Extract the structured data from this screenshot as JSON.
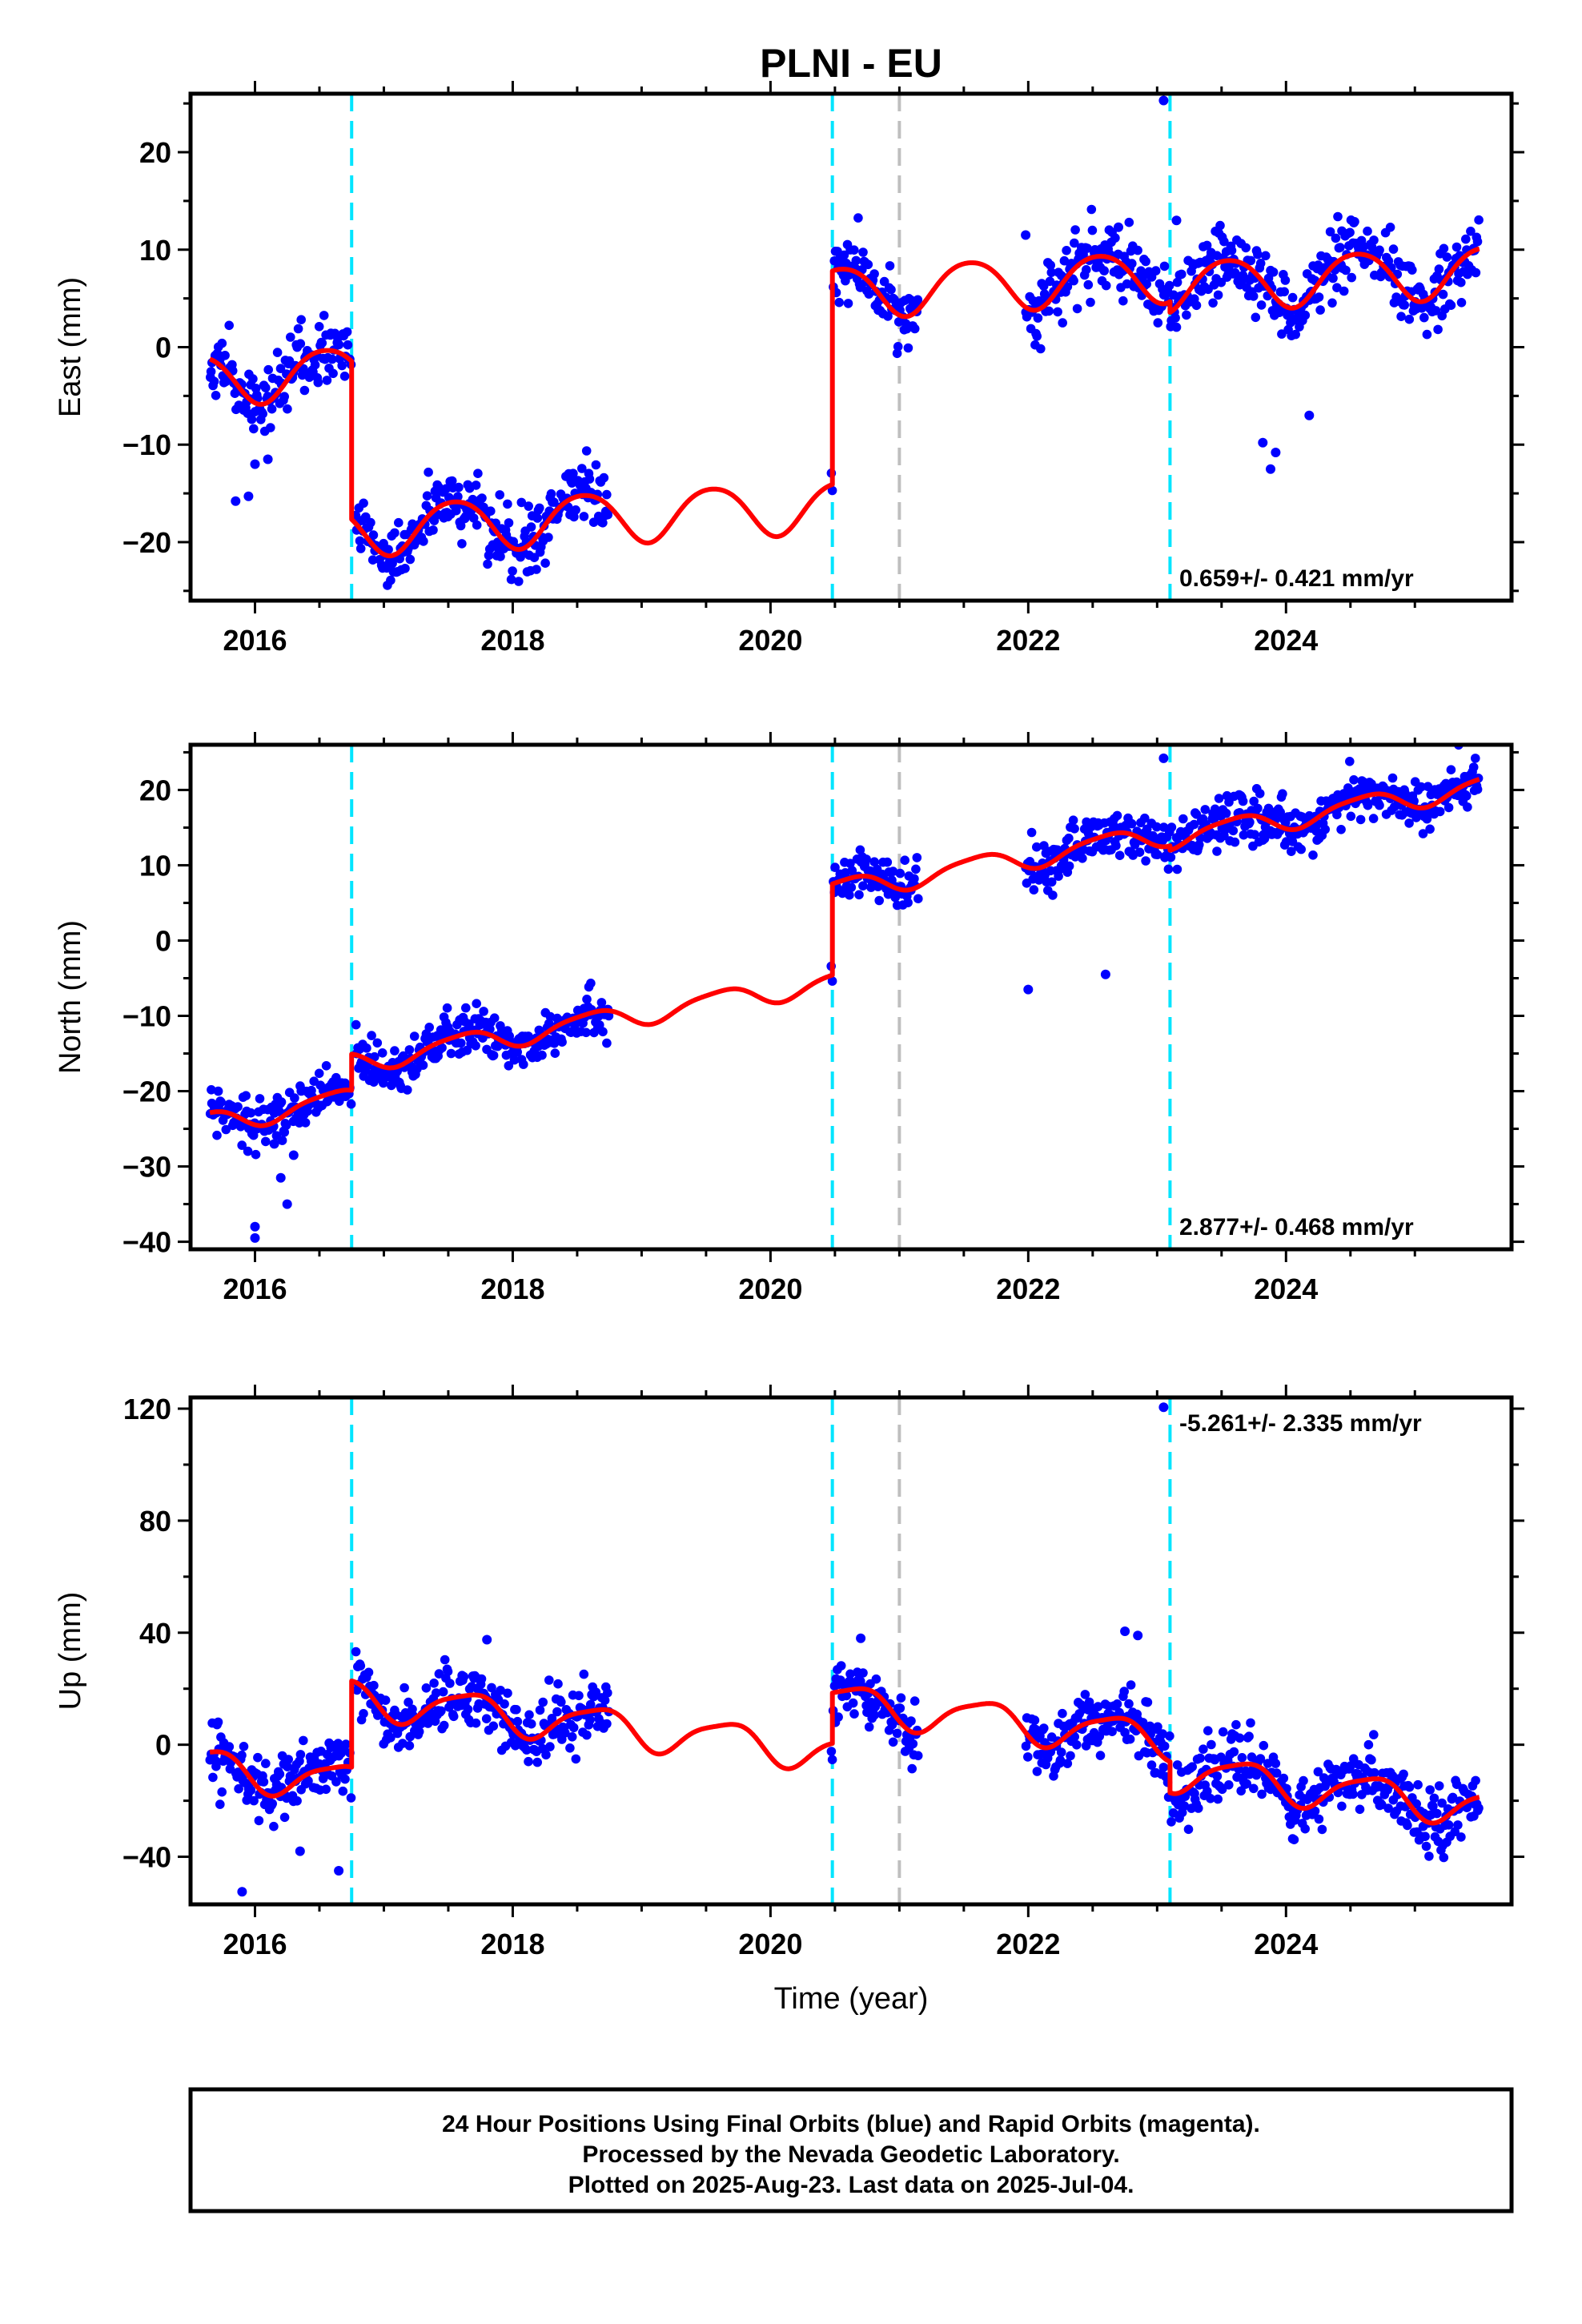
{
  "figure": {
    "title": "PLNI - EU",
    "footer_lines": [
      "24 Hour Positions Using Final Orbits (blue) and Rapid Orbits (magenta).",
      "Processed by the Nevada Geodetic Laboratory.",
      "Plotted on 2025-Aug-23. Last data on 2025-Jul-04."
    ],
    "colors": {
      "final_orbits": "#0000ff",
      "model": "#ff0000",
      "equipment_change": "#00e5ff",
      "other_event": "#bfbfbf"
    }
  },
  "chart_data": [
    {
      "type": "scatter",
      "component": "East",
      "ylabel": "East (mm)",
      "xlabel": "",
      "xlim": [
        2015.5,
        2025.75
      ],
      "ylim": [
        -26,
        26
      ],
      "xticks": [
        2016,
        2018,
        2020,
        2022,
        2024
      ],
      "yticks": [
        -20,
        -10,
        0,
        10,
        20
      ],
      "rate_label": "0.659+/- 0.421 mm/yr",
      "rate_position": "bottom-right",
      "equipment_changes": [
        2016.75,
        2020.48,
        2023.1
      ],
      "other_events": [
        2021.0
      ],
      "model": {
        "segments": [
          {
            "start": 2015.65,
            "end": 2016.75,
            "offset": -3.0,
            "trend": 0.659
          },
          {
            "start": 2016.75,
            "end": 2020.48,
            "offset": -19.2,
            "trend": 0.659
          },
          {
            "start": 2020.48,
            "end": 2023.1,
            "offset": 2.7,
            "trend": 0.659
          },
          {
            "start": 2023.1,
            "end": 2025.5,
            "offset": 1.6,
            "trend": 0.659
          }
        ],
        "annual_amplitude": 2.6,
        "annual_peak": 2016.55,
        "semiannual_amplitude": 0.3,
        "semiannual_peak": 2016.3
      },
      "data_spans": [
        [
          2015.65,
          2016.75
        ],
        [
          2016.78,
          2018.75
        ],
        [
          2020.47,
          2021.15
        ],
        [
          2021.98,
          2025.5
        ]
      ],
      "scatter_sigma": 1.7,
      "outliers": [
        [
          2023.05,
          25.3
        ],
        [
          2023.15,
          13.0
        ],
        [
          2021.98,
          11.5
        ],
        [
          2022.7,
          12.3
        ],
        [
          2015.85,
          -15.8
        ],
        [
          2015.95,
          -15.3
        ],
        [
          2016.0,
          -12.0
        ],
        [
          2016.1,
          -11.5
        ],
        [
          2023.88,
          -12.5
        ],
        [
          2023.92,
          -10.8
        ],
        [
          2023.82,
          -9.8
        ],
        [
          2024.18,
          -7.0
        ]
      ]
    },
    {
      "type": "scatter",
      "component": "North",
      "ylabel": "North (mm)",
      "xlabel": "",
      "xlim": [
        2015.5,
        2025.75
      ],
      "ylim": [
        -41,
        26
      ],
      "xticks": [
        2016,
        2018,
        2020,
        2022,
        2024
      ],
      "yticks": [
        -40,
        -30,
        -20,
        -10,
        0,
        10,
        20
      ],
      "rate_label": "2.877+/- 0.468 mm/yr",
      "rate_position": "bottom-right",
      "equipment_changes": [
        2016.75,
        2020.48,
        2023.1
      ],
      "other_events": [
        2021.0
      ],
      "model": {
        "segments": [
          {
            "start": 2015.65,
            "end": 2016.75,
            "offset": -23.1,
            "trend": 2.877
          },
          {
            "start": 2016.75,
            "end": 2020.48,
            "offset": -18.3,
            "trend": 2.877
          },
          {
            "start": 2020.48,
            "end": 2023.1,
            "offset": -6.2,
            "trend": 2.877
          },
          {
            "start": 2023.1,
            "end": 2025.5,
            "offset": -6.8,
            "trend": 2.877
          }
        ],
        "annual_amplitude": 1.4,
        "annual_peak": 2016.6,
        "semiannual_amplitude": 0.3,
        "semiannual_peak": 2016.3
      },
      "data_spans": [
        [
          2015.65,
          2016.75
        ],
        [
          2016.78,
          2018.75
        ],
        [
          2020.47,
          2021.15
        ],
        [
          2021.98,
          2025.5
        ]
      ],
      "scatter_sigma": 1.6,
      "outliers": [
        [
          2023.05,
          24.2
        ],
        [
          2016.0,
          -38.0
        ],
        [
          2016.0,
          -39.5
        ],
        [
          2016.25,
          -35.0
        ],
        [
          2016.2,
          -31.5
        ],
        [
          2016.3,
          -28.5
        ],
        [
          2016.15,
          -27.0
        ],
        [
          2022.0,
          -6.5
        ],
        [
          2022.6,
          -4.5
        ]
      ]
    },
    {
      "type": "scatter",
      "component": "Up",
      "ylabel": "Up (mm)",
      "xlabel": "Time (year)",
      "xlim": [
        2015.5,
        2025.75
      ],
      "ylim": [
        -57,
        124
      ],
      "xticks": [
        2016,
        2018,
        2020,
        2022,
        2024
      ],
      "yticks": [
        -40,
        0,
        40,
        80,
        120
      ],
      "rate_label": "-5.261+/- 2.335 mm/yr",
      "rate_position": "top-right",
      "equipment_changes": [
        2016.75,
        2020.48,
        2023.1
      ],
      "other_events": [
        2021.0
      ],
      "model": {
        "segments": [
          {
            "start": 2015.65,
            "end": 2016.75,
            "offset": -9.8,
            "trend": -5.261
          },
          {
            "start": 2016.75,
            "end": 2020.48,
            "offset": 21.0,
            "trend": -5.261
          },
          {
            "start": 2020.48,
            "end": 2023.1,
            "offset": 39.0,
            "trend": -5.261
          },
          {
            "start": 2023.1,
            "end": 2025.5,
            "offset": 27.9,
            "trend": -5.261
          }
        ],
        "annual_amplitude": 6.5,
        "annual_peak": 2016.65,
        "semiannual_amplitude": 1.5,
        "semiannual_peak": 2016.35
      },
      "data_spans": [
        [
          2015.65,
          2016.75
        ],
        [
          2016.78,
          2018.75
        ],
        [
          2020.47,
          2021.15
        ],
        [
          2021.98,
          2025.5
        ]
      ],
      "scatter_sigma": 5.5,
      "outliers": [
        [
          2023.05,
          120.5
        ],
        [
          2015.9,
          -52.5
        ],
        [
          2016.65,
          -45.0
        ],
        [
          2016.35,
          -38.0
        ],
        [
          2017.8,
          37.5
        ],
        [
          2020.7,
          38.0
        ],
        [
          2022.75,
          40.5
        ],
        [
          2022.85,
          39.0
        ]
      ]
    }
  ]
}
